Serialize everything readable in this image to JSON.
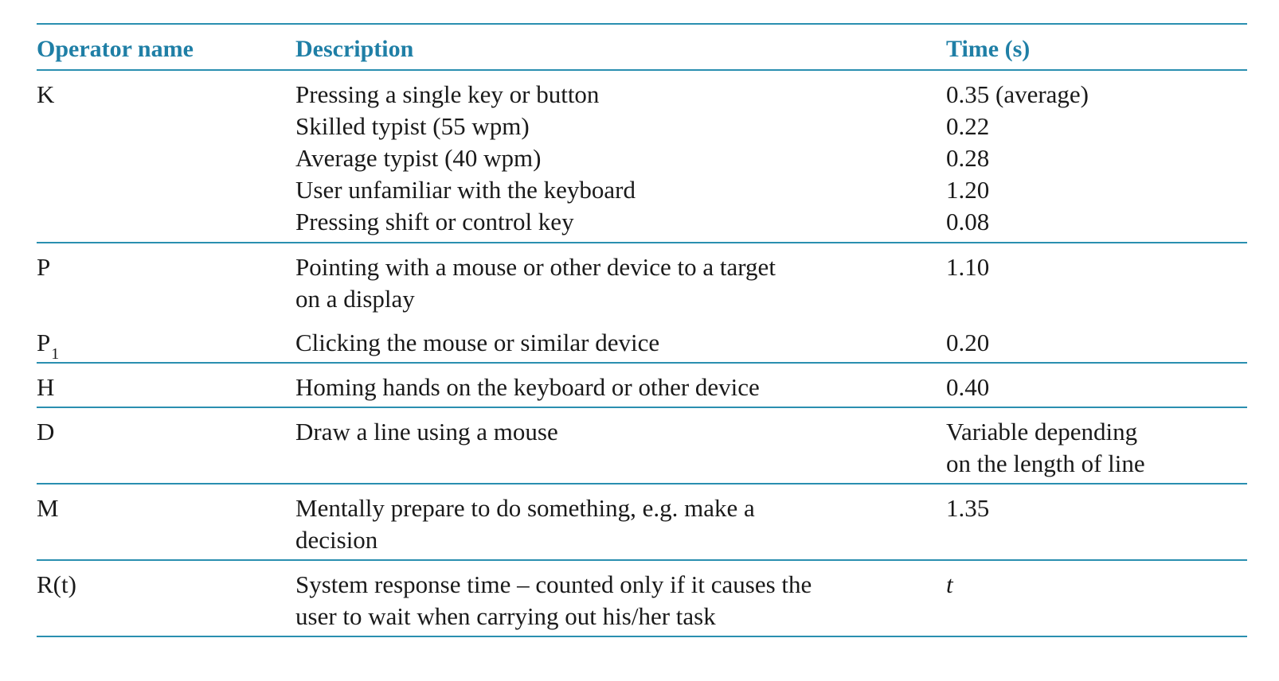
{
  "table": {
    "headers": {
      "operator": "Operator name",
      "description": "Description",
      "time": "Time (s)"
    },
    "rows": {
      "k": {
        "operator": "K",
        "lines": [
          {
            "description": "Pressing a single key or button",
            "time": "0.35 (average)"
          },
          {
            "description": "Skilled typist (55 wpm)",
            "time": "0.22"
          },
          {
            "description": "Average typist (40 wpm)",
            "time": "0.28"
          },
          {
            "description": "User unfamiliar with the keyboard",
            "time": "1.20"
          },
          {
            "description": "Pressing shift or control key",
            "time": "0.08"
          }
        ]
      },
      "p": {
        "operator": "P",
        "description_line1": "Pointing with a mouse or other device to a target",
        "description_line2": "on a display",
        "time": "1.10"
      },
      "p1": {
        "operator": "P",
        "operator_sub": "1",
        "description": "Clicking the mouse or similar device",
        "time": "0.20"
      },
      "h": {
        "operator": "H",
        "description": "Homing hands on the keyboard or other device",
        "time": "0.40"
      },
      "d": {
        "operator": "D",
        "description": "Draw a line using a mouse",
        "time_line1": "Variable depending",
        "time_line2": "on the length of line"
      },
      "m": {
        "operator": "M",
        "description_line1": "Mentally prepare to do something, e.g. make a",
        "description_line2": "decision",
        "time": "1.35"
      },
      "r": {
        "operator": "R(t)",
        "description_line1": "System response time – counted only if it causes the",
        "description_line2": "user to wait when carrying out his/her task",
        "time": "t"
      }
    }
  },
  "colors": {
    "accent": "#2a8fb0",
    "header_text": "#1f7fa6",
    "body_text": "#1a1a1a"
  }
}
